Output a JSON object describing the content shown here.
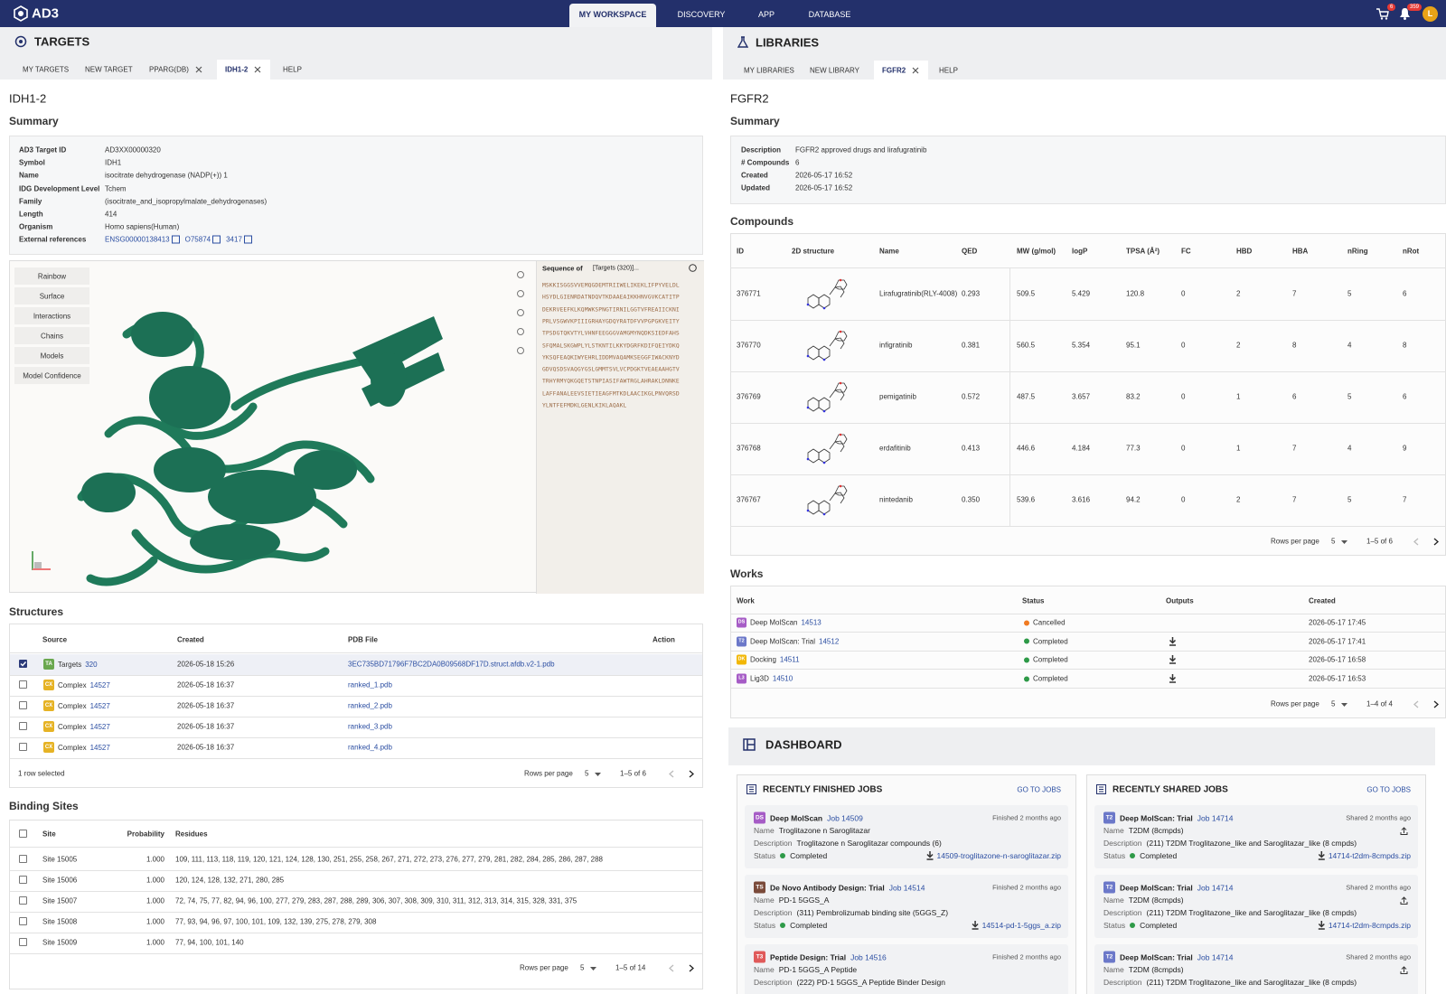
{
  "nav": {
    "logo": "AD3",
    "tabs": [
      "MY WORKSPACE",
      "DISCOVERY",
      "APP",
      "DATABASE"
    ],
    "active_tab": 0,
    "cart_count": "6",
    "notification_count": "359",
    "avatar": "L"
  },
  "targets": {
    "title": "TARGETS",
    "tabs": [
      {
        "label": "MY TARGETS"
      },
      {
        "label": "NEW TARGET"
      },
      {
        "label": "PPARG(DB)",
        "closable": true
      },
      {
        "label": "IDH1-2",
        "closable": true,
        "active": true
      },
      {
        "label": "HELP"
      }
    ],
    "heading": "IDH1-2",
    "summary_title": "Summary",
    "summary": [
      [
        "AD3 Target ID",
        "AD3XX00000320"
      ],
      [
        "Symbol",
        "IDH1"
      ],
      [
        "Name",
        "isocitrate dehydrogenase (NADP(+)) 1"
      ],
      [
        "IDG Development Level",
        "Tchem"
      ],
      [
        "Family",
        "(isocitrate_and_isopropylmalate_dehydrogenases)"
      ],
      [
        "Length",
        "414"
      ],
      [
        "Organism",
        "Homo sapiens(Human)"
      ]
    ],
    "external_label": "External references",
    "external_refs": [
      "ENSG00000138413",
      "O75874",
      "3417"
    ],
    "viewer_buttons": [
      "Rainbow",
      "Surface",
      "Interactions",
      "Chains",
      "Models",
      "Model Confidence"
    ],
    "sequence_label": "Sequence of",
    "sequence_select": "[Targets (320)]...",
    "sequence": [
      "MSKKISGGSVVEMQGDEMTRIIWELIKEKLIFPYVELDL",
      "HSYDLGIENRDATNDQVTKDAAEAIKKHNVGVKCATITP",
      "DEKRVEEFKLKQMWKSPNGTIRNILGGTVFREAIICKNI",
      "PRLVSGWVKPIIIGRHAYGDQYRATDFVVPGPGKVEITY",
      "TPSDGTQKVTYLVHNFEEGGGVAMGMYNQDKSIEDFAHS",
      "SFQMALSKGWPLYLSTKNTILKKYDGRFKDIFQEIYDKQ",
      "YKSQFEAQKIWYEHRLIDDMVAQAMKSEGGFIWACKNYD",
      "GDVQSDSVAQGYGSLGMMTSVLVCPDGKTVEAEAAHGTV",
      "TRHYRMYQKGQETSTNPIASIFAWTRGLAHRAKLDNNKE",
      "LAFFANALEEVSIETIEAGFMTKDLAACIKGLPNVQRSD",
      "YLNTFEFMDKLGENLKIKLAQAKL"
    ],
    "structures": {
      "title": "Structures",
      "columns": [
        "Source",
        "Created",
        "PDB File",
        "Action"
      ],
      "rows": [
        {
          "badge": "TA",
          "color": "#6aa84f",
          "source": "Targets",
          "id": "320",
          "created": "2026-05-18 15:26",
          "file": "3EC735BD71796F7BC2DA0B09568DF17D.struct.afdb.v2-1.pdb",
          "selected": true
        },
        {
          "badge": "CX",
          "color": "#e6b325",
          "source": "Complex",
          "id": "14527",
          "created": "2026-05-18 16:37",
          "file": "ranked_1.pdb"
        },
        {
          "badge": "CX",
          "color": "#e6b325",
          "source": "Complex",
          "id": "14527",
          "created": "2026-05-18 16:37",
          "file": "ranked_2.pdb"
        },
        {
          "badge": "CX",
          "color": "#e6b325",
          "source": "Complex",
          "id": "14527",
          "created": "2026-05-18 16:37",
          "file": "ranked_3.pdb"
        },
        {
          "badge": "CX",
          "color": "#e6b325",
          "source": "Complex",
          "id": "14527",
          "created": "2026-05-18 16:37",
          "file": "ranked_4.pdb"
        }
      ],
      "selected_text": "1 row selected",
      "rows_per_page_label": "Rows per page",
      "rows_per_page": "5",
      "range": "1–5 of 6"
    },
    "binding_sites": {
      "title": "Binding Sites",
      "columns": [
        "Site",
        "Probability",
        "Residues"
      ],
      "rows": [
        [
          "Site 15005",
          "1.000",
          "109, 111, 113, 118, 119, 120, 121, 124, 128, 130, 251, 255, 258, 267, 271, 272, 273, 276, 277, 279, 281, 282, 284, 285, 286, 287, 288"
        ],
        [
          "Site 15006",
          "1.000",
          "120, 124, 128, 132, 271, 280, 285"
        ],
        [
          "Site 15007",
          "1.000",
          "72, 74, 75, 77, 82, 94, 96, 100, 277, 279, 283, 287, 288, 289, 306, 307, 308, 309, 310, 311, 312, 313, 314, 315, 328, 331, 375"
        ],
        [
          "Site 15008",
          "1.000",
          "77, 93, 94, 96, 97, 100, 101, 109, 132, 139, 275, 278, 279, 308"
        ],
        [
          "Site 15009",
          "1.000",
          "77, 94, 100, 101, 140"
        ]
      ],
      "rows_per_page_label": "Rows per page",
      "rows_per_page": "5",
      "range": "1–5 of 14"
    }
  },
  "libraries": {
    "title": "LIBRARIES",
    "tabs": [
      {
        "label": "MY LIBRARIES"
      },
      {
        "label": "NEW LIBRARY"
      },
      {
        "label": "FGFR2",
        "closable": true,
        "active": true
      },
      {
        "label": "HELP"
      }
    ],
    "heading": "FGFR2",
    "summary_title": "Summary",
    "summary": [
      [
        "Description",
        "FGFR2 approved drugs and lirafugratinib"
      ],
      [
        "# Compounds",
        "6"
      ],
      [
        "Created",
        "2026-05-17 16:52"
      ],
      [
        "Updated",
        "2026-05-17 16:52"
      ]
    ],
    "compounds": {
      "title": "Compounds",
      "columns": [
        "ID",
        "2D structure",
        "Name",
        "QED",
        "MW (g/mol)",
        "logP",
        "TPSA (Å²)",
        "FC",
        "HBD",
        "HBA",
        "nRing",
        "nRot"
      ],
      "rows": [
        [
          "376771",
          "Lirafugratinib(RLY-4008)",
          "0.293",
          "509.5",
          "5.429",
          "120.8",
          "0",
          "2",
          "7",
          "5",
          "6"
        ],
        [
          "376770",
          "infigratinib",
          "0.381",
          "560.5",
          "5.354",
          "95.1",
          "0",
          "2",
          "8",
          "4",
          "8"
        ],
        [
          "376769",
          "pemigatinib",
          "0.572",
          "487.5",
          "3.657",
          "83.2",
          "0",
          "1",
          "6",
          "5",
          "6"
        ],
        [
          "376768",
          "erdafitinib",
          "0.413",
          "446.6",
          "4.184",
          "77.3",
          "0",
          "1",
          "7",
          "4",
          "9"
        ],
        [
          "376767",
          "nintedanib",
          "0.350",
          "539.6",
          "3.616",
          "94.2",
          "0",
          "2",
          "7",
          "5",
          "7"
        ]
      ],
      "rows_per_page_label": "Rows per page",
      "rows_per_page": "5",
      "range": "1–5 of 6"
    },
    "works": {
      "title": "Works",
      "columns": [
        "Work",
        "Status",
        "Outputs",
        "Created"
      ],
      "rows": [
        {
          "badge": "DS",
          "color": "#a65cc6",
          "name": "Deep MolScan",
          "id": "14513",
          "status": "Cancelled",
          "status_color": "#f07b22",
          "download": false,
          "created": "2026-05-17 17:45"
        },
        {
          "badge": "T2",
          "color": "#6b78c9",
          "name": "Deep MolScan: Trial",
          "id": "14512",
          "status": "Completed",
          "status_color": "#2e9a48",
          "download": true,
          "created": "2026-05-17 17:41"
        },
        {
          "badge": "DK",
          "color": "#f2b705",
          "name": "Docking",
          "id": "14511",
          "status": "Completed",
          "status_color": "#2e9a48",
          "download": true,
          "created": "2026-05-17 16:58"
        },
        {
          "badge": "L3",
          "color": "#a65cc6",
          "name": "Lig3D",
          "id": "14510",
          "status": "Completed",
          "status_color": "#2e9a48",
          "download": true,
          "created": "2026-05-17 16:53"
        }
      ],
      "rows_per_page_label": "Rows per page",
      "rows_per_page": "5",
      "range": "1–4 of 4"
    }
  },
  "dashboard": {
    "title": "DASHBOARD",
    "cards": [
      {
        "title": "RECENTLY FINISHED JOBS",
        "link": "GO TO JOBS",
        "jobs": [
          {
            "badge": "DS",
            "color": "#a65cc6",
            "name": "Deep MolScan",
            "job": "Job 14509",
            "time": "Finished 2 months ago",
            "fields": [
              [
                "Name",
                "Troglitazone n Saroglitazar"
              ],
              [
                "Description",
                "Troglitazone n Saroglitazar compounds (6)"
              ],
              [
                "Status",
                "Completed"
              ]
            ],
            "file": "14509-troglitazone-n-saroglitazar.zip"
          },
          {
            "badge": "TS",
            "color": "#7a4a3a",
            "name": "De Novo Antibody Design: Trial",
            "job": "Job 14514",
            "time": "Finished 2 months ago",
            "fields": [
              [
                "Name",
                "PD-1 5GGS_A"
              ],
              [
                "Description",
                "(311) Pembrolizumab binding site (5GGS_Z)"
              ],
              [
                "Status",
                "Completed"
              ]
            ],
            "file": "14514-pd-1-5ggs_a.zip"
          },
          {
            "badge": "T3",
            "color": "#e05a5a",
            "name": "Peptide Design: Trial",
            "job": "Job 14516",
            "time": "Finished 2 months ago",
            "fields": [
              [
                "Name",
                "PD-1 5GGS_A Peptide"
              ],
              [
                "Description",
                "(222) PD-1 5GGS_A Peptide Binder Design"
              ]
            ]
          }
        ]
      },
      {
        "title": "RECENTLY SHARED JOBS",
        "link": "GO TO JOBS",
        "jobs": [
          {
            "badge": "T2",
            "color": "#6b78c9",
            "name": "Deep MolScan: Trial",
            "job": "Job 14714",
            "time": "Shared 2 months ago",
            "fields": [
              [
                "Name",
                "T2DM (8cmpds)"
              ],
              [
                "Description",
                "(211) T2DM Troglitazone_like and Saroglitazar_like (8 cmpds)"
              ],
              [
                "Status",
                "Completed"
              ]
            ],
            "file": "14714-t2dm-8cmpds.zip",
            "share": true
          },
          {
            "badge": "T2",
            "color": "#6b78c9",
            "name": "Deep MolScan: Trial",
            "job": "Job 14714",
            "time": "Shared 2 months ago",
            "fields": [
              [
                "Name",
                "T2DM (8cmpds)"
              ],
              [
                "Description",
                "(211) T2DM Troglitazone_like and Saroglitazar_like (8 cmpds)"
              ],
              [
                "Status",
                "Completed"
              ]
            ],
            "file": "14714-t2dm-8cmpds.zip",
            "share": true
          },
          {
            "badge": "T2",
            "color": "#6b78c9",
            "name": "Deep MolScan: Trial",
            "job": "Job 14714",
            "time": "Shared 2 months ago",
            "fields": [
              [
                "Name",
                "T2DM (8cmpds)"
              ],
              [
                "Description",
                "(211) T2DM Troglitazone_like and Saroglitazar_like (8 cmpds)"
              ]
            ],
            "share": true
          }
        ]
      }
    ]
  }
}
